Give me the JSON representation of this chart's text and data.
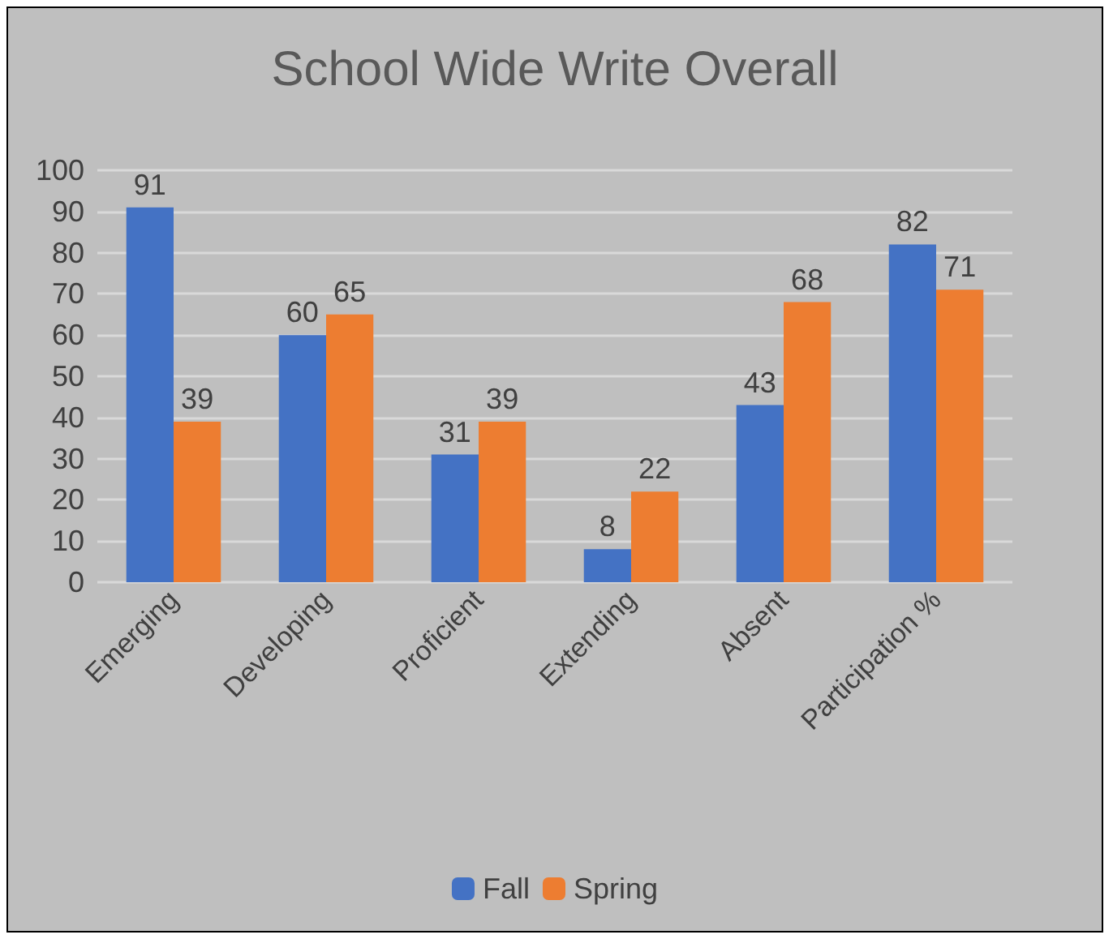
{
  "chart_data": {
    "type": "bar",
    "title": "School Wide Write Overall",
    "categories": [
      "Emerging",
      "Developing",
      "Proficient",
      "Extending",
      "Absent",
      "Participation %"
    ],
    "series": [
      {
        "name": "Fall",
        "color": "#4472c4",
        "values": [
          91,
          60,
          31,
          8,
          43,
          82
        ]
      },
      {
        "name": "Spring",
        "color": "#ed7d31",
        "values": [
          39,
          65,
          39,
          22,
          68,
          71
        ]
      }
    ],
    "ylim": [
      0,
      100
    ],
    "yticks": [
      0,
      10,
      20,
      30,
      40,
      50,
      60,
      70,
      80,
      90,
      100
    ],
    "grid": true,
    "legend": "bottom",
    "data_labels": true
  }
}
